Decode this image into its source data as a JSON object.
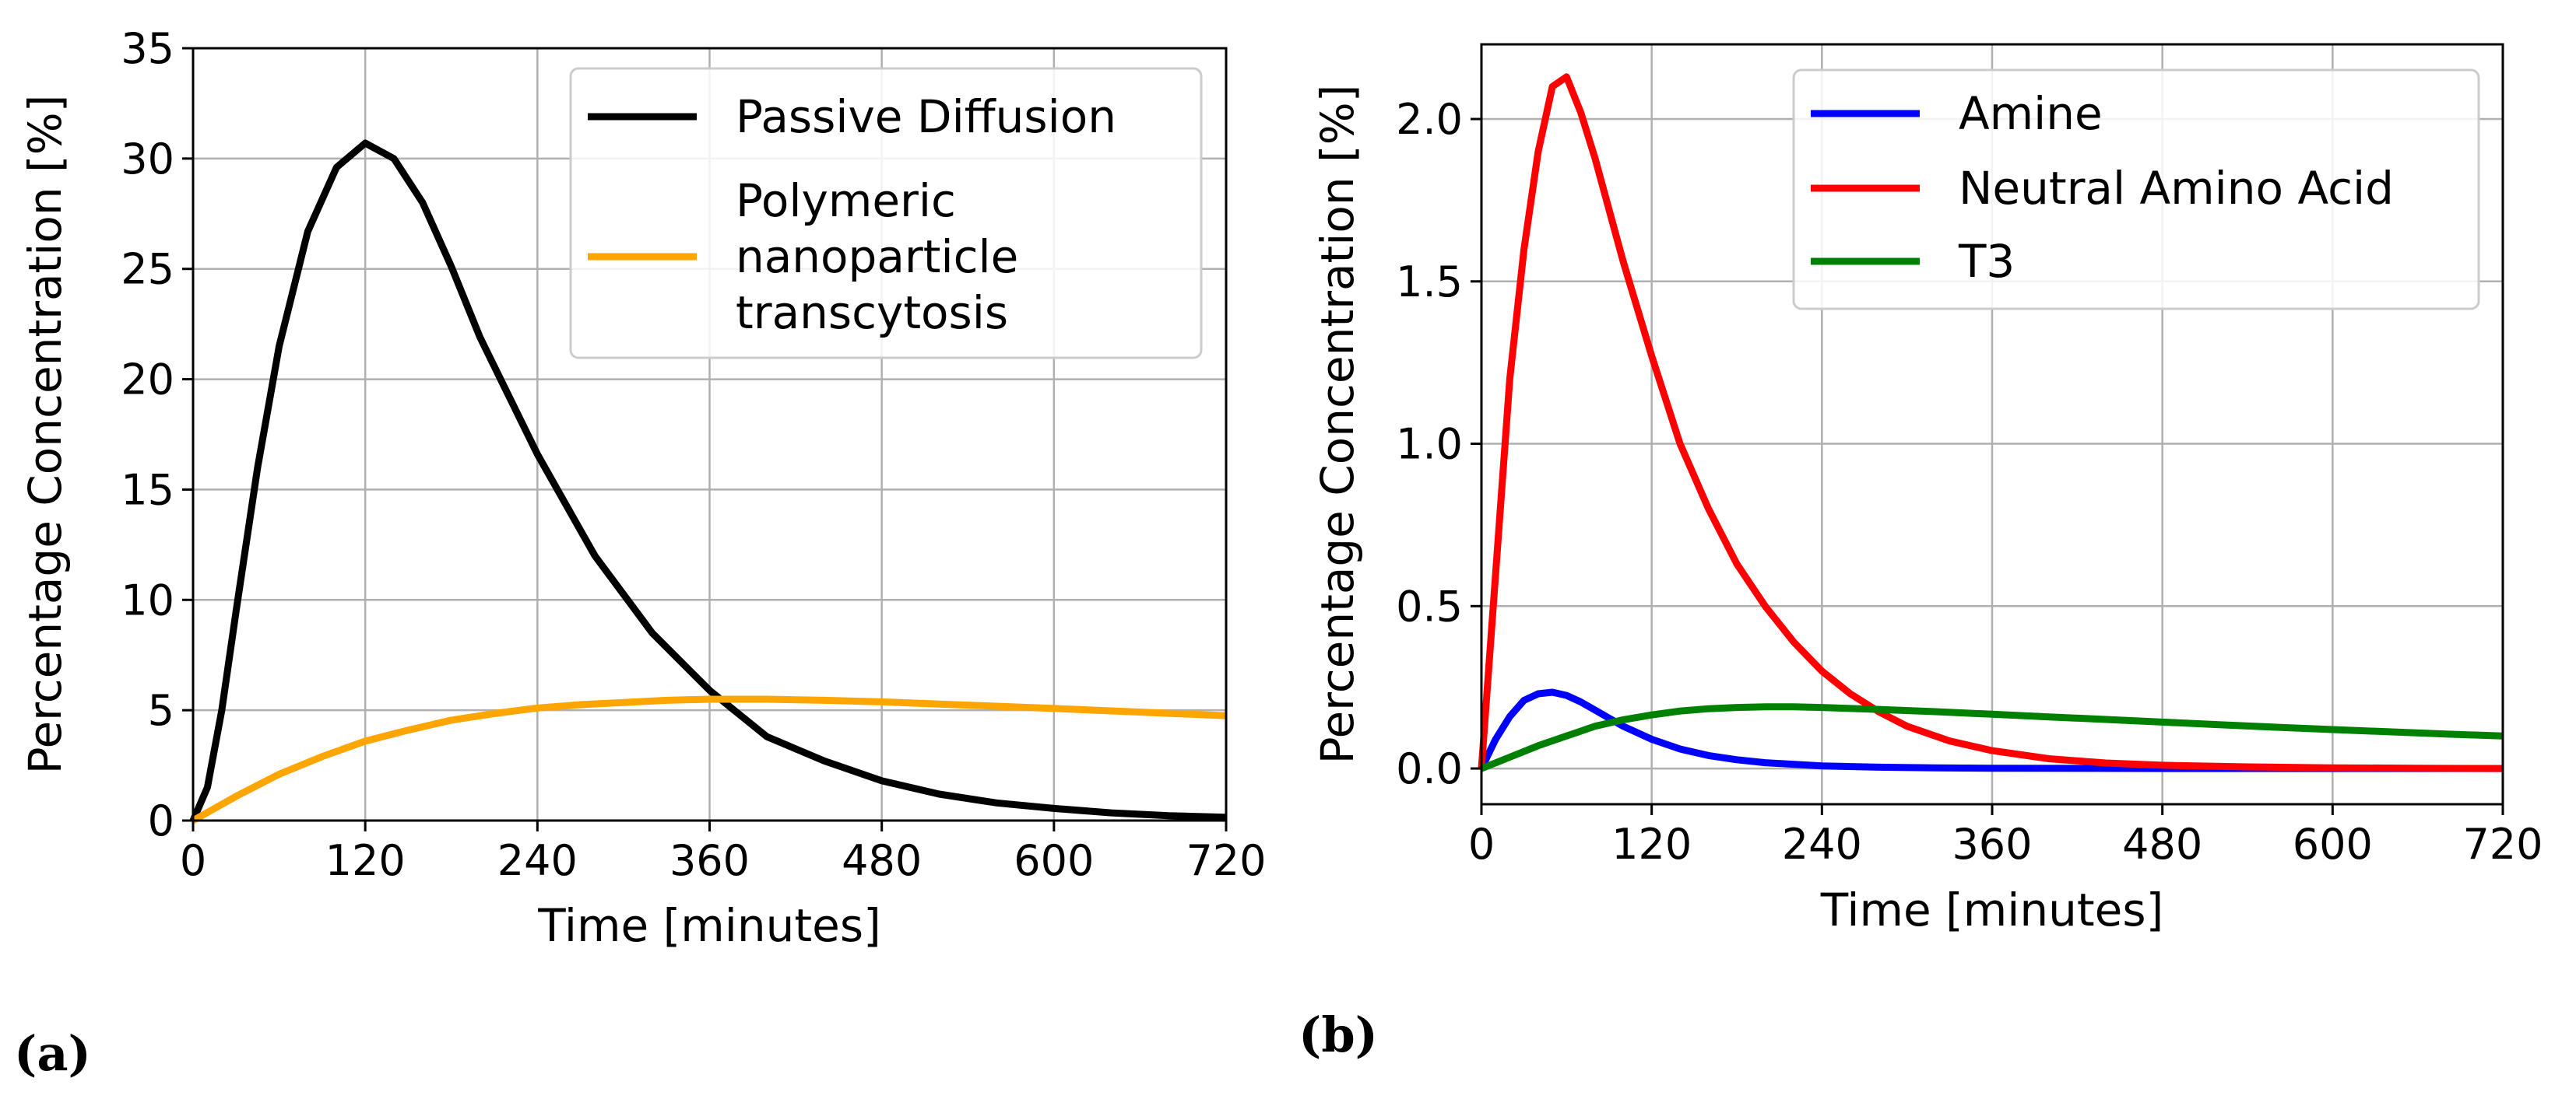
{
  "panel_labels": [
    "(a)",
    "(b)"
  ],
  "chart_data": [
    {
      "type": "line",
      "title": "",
      "xlabel": "Time [minutes]",
      "ylabel": "Percentage Concentration [%]",
      "xlim": [
        0,
        720
      ],
      "ylim": [
        0,
        35
      ],
      "xticks": [
        0,
        120,
        240,
        360,
        480,
        600,
        720
      ],
      "yticks": [
        0,
        5,
        10,
        15,
        20,
        25,
        30,
        35
      ],
      "xtick_labels": [
        "0",
        "120",
        "240",
        "360",
        "480",
        "600",
        "720"
      ],
      "ytick_labels": [
        "0",
        "5",
        "10",
        "15",
        "20",
        "25",
        "30",
        "35"
      ],
      "grid": true,
      "legend_position": "top-right",
      "series": [
        {
          "name": "Passive Diffusion",
          "color": "#000000",
          "x": [
            0,
            10,
            20,
            30,
            45,
            60,
            80,
            100,
            120,
            140,
            160,
            180,
            200,
            240,
            280,
            320,
            360,
            400,
            440,
            480,
            520,
            560,
            600,
            640,
            680,
            720
          ],
          "y": [
            0,
            1.5,
            5.0,
            9.5,
            16.0,
            21.5,
            26.7,
            29.6,
            30.7,
            30.0,
            28.0,
            25.1,
            21.9,
            16.6,
            12.0,
            8.5,
            5.9,
            3.8,
            2.7,
            1.8,
            1.2,
            0.8,
            0.55,
            0.35,
            0.22,
            0.15
          ]
        },
        {
          "name": "Polymeric nanoparticle transcytosis",
          "legend_lines": [
            "Polymeric",
            "nanoparticle",
            "transcytosis"
          ],
          "color": "#ffa500",
          "x": [
            0,
            30,
            60,
            90,
            120,
            150,
            180,
            210,
            240,
            270,
            300,
            330,
            360,
            400,
            440,
            480,
            520,
            560,
            600,
            640,
            680,
            720
          ],
          "y": [
            0,
            1.1,
            2.1,
            2.9,
            3.6,
            4.1,
            4.55,
            4.85,
            5.1,
            5.25,
            5.35,
            5.45,
            5.5,
            5.5,
            5.45,
            5.38,
            5.28,
            5.18,
            5.08,
            4.97,
            4.86,
            4.75
          ]
        }
      ]
    },
    {
      "type": "line",
      "title": "",
      "xlabel": "Time [minutes]",
      "ylabel": "Percentage Concentration [%]",
      "xlim": [
        0,
        720
      ],
      "ylim": [
        -0.11,
        2.23
      ],
      "xticks": [
        0,
        120,
        240,
        360,
        480,
        600,
        720
      ],
      "yticks": [
        0,
        0.5,
        1.0,
        1.5,
        2.0
      ],
      "xtick_labels": [
        "0",
        "120",
        "240",
        "360",
        "480",
        "600",
        "720"
      ],
      "ytick_labels": [
        "0.0",
        "0.5",
        "1.0",
        "1.5",
        "2.0"
      ],
      "grid": true,
      "legend_position": "top-right",
      "series": [
        {
          "name": "Amine",
          "color": "#0000ff",
          "x": [
            0,
            10,
            20,
            30,
            40,
            50,
            60,
            70,
            80,
            90,
            100,
            120,
            140,
            160,
            180,
            200,
            240,
            280,
            320,
            360,
            480,
            600,
            720
          ],
          "y": [
            0,
            0.09,
            0.16,
            0.21,
            0.23,
            0.235,
            0.225,
            0.205,
            0.18,
            0.155,
            0.13,
            0.09,
            0.06,
            0.04,
            0.027,
            0.018,
            0.008,
            0.004,
            0.002,
            0.001,
            0.0,
            0.0,
            0.0
          ]
        },
        {
          "name": "Neutral Amino Acid",
          "color": "#ff0000",
          "x": [
            0,
            10,
            20,
            30,
            40,
            50,
            60,
            70,
            80,
            90,
            100,
            120,
            140,
            160,
            180,
            200,
            220,
            240,
            260,
            280,
            300,
            330,
            360,
            400,
            440,
            480,
            540,
            600,
            660,
            720
          ],
          "y": [
            0,
            0.6,
            1.2,
            1.6,
            1.9,
            2.1,
            2.13,
            2.02,
            1.88,
            1.72,
            1.56,
            1.27,
            1.0,
            0.8,
            0.63,
            0.5,
            0.39,
            0.3,
            0.23,
            0.175,
            0.13,
            0.085,
            0.055,
            0.03,
            0.017,
            0.01,
            0.005,
            0.002,
            0.001,
            0.0
          ]
        },
        {
          "name": "T3",
          "color": "#008000",
          "x": [
            0,
            20,
            40,
            60,
            80,
            100,
            120,
            140,
            160,
            180,
            200,
            220,
            240,
            280,
            320,
            360,
            400,
            440,
            480,
            520,
            560,
            600,
            640,
            680,
            720
          ],
          "y": [
            0,
            0.035,
            0.07,
            0.1,
            0.13,
            0.15,
            0.165,
            0.177,
            0.184,
            0.188,
            0.19,
            0.19,
            0.188,
            0.182,
            0.175,
            0.167,
            0.159,
            0.151,
            0.143,
            0.135,
            0.127,
            0.12,
            0.113,
            0.106,
            0.1
          ]
        }
      ]
    }
  ]
}
